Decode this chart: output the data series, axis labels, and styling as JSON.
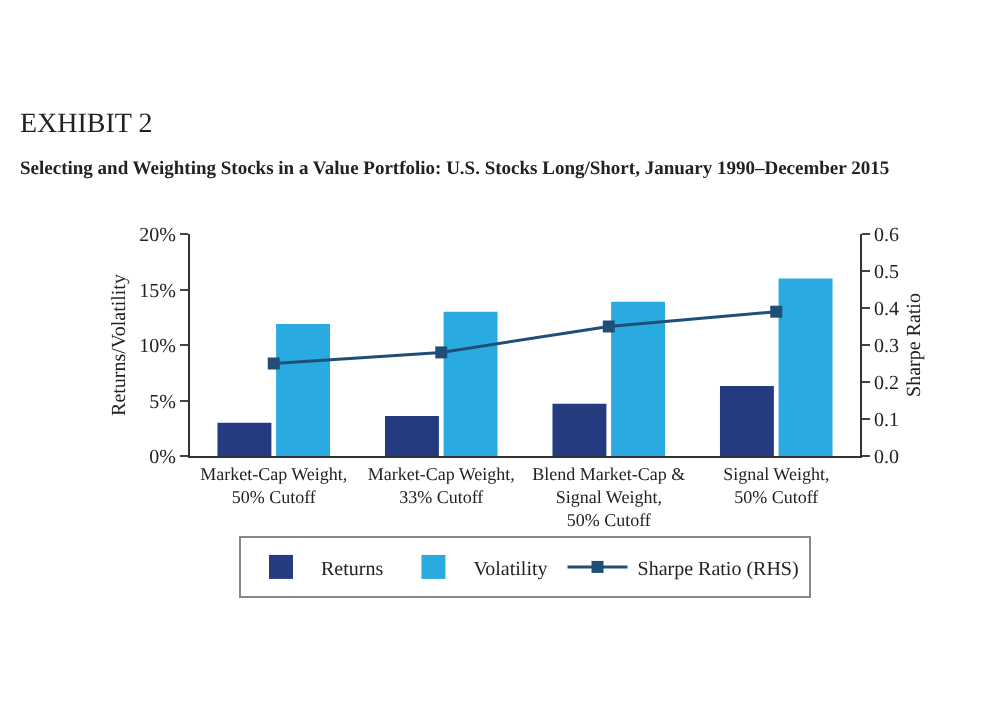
{
  "chart_data": {
    "type": "bar",
    "title": "EXHIBIT 2",
    "subtitle": "Selecting and Weighting Stocks in a Value Portfolio: U.S. Stocks Long/Short, January 1990–December 2015",
    "ylabel": "Returns/Volatility",
    "y2label": "Sharpe Ratio",
    "categories": [
      "Market-Cap Weight,\n50% Cutoff",
      "Market-Cap Weight,\n33% Cutoff",
      "Blend Market-Cap &\nSignal Weight,\n50% Cutoff",
      "Signal Weight,\n50% Cutoff"
    ],
    "series": [
      {
        "name": "Returns",
        "color": "#253b80",
        "values": [
          3.0,
          3.6,
          4.7,
          6.3
        ]
      },
      {
        "name": "Volatility",
        "color": "#29abe2",
        "values": [
          11.9,
          13.0,
          13.9,
          16.0
        ]
      },
      {
        "name": "Sharpe Ratio (RHS)",
        "type": "line",
        "axis": "y2",
        "color": "#1f4e79",
        "marker": "square",
        "line_style": "solid",
        "values": [
          0.25,
          0.28,
          0.35,
          0.39
        ]
      }
    ],
    "ylim": [
      0,
      20
    ],
    "yticks": [
      {
        "value": 0,
        "label": "0%"
      },
      {
        "value": 5,
        "label": "5%"
      },
      {
        "value": 10,
        "label": "10%"
      },
      {
        "value": 15,
        "label": "15%"
      },
      {
        "value": 20,
        "label": "20%"
      }
    ],
    "y2lim": [
      0,
      0.6
    ],
    "y2ticks": [
      {
        "value": 0,
        "label": "0.0"
      },
      {
        "value": 0.1,
        "label": "0.1"
      },
      {
        "value": 0.2,
        "label": "0.2"
      },
      {
        "value": 0.3,
        "label": "0.3"
      },
      {
        "value": 0.4,
        "label": "0.4"
      },
      {
        "value": 0.5,
        "label": "0.5"
      },
      {
        "value": 0.6,
        "label": "0.6"
      }
    ],
    "grid": false,
    "legend": "bottom"
  }
}
